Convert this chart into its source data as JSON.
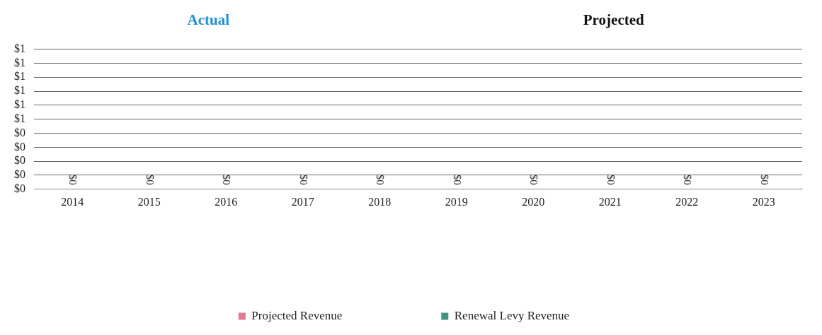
{
  "chart_data": {
    "type": "bar",
    "stacked": true,
    "annotations": [
      "Actual",
      "Projected"
    ],
    "categories": [
      "2014",
      "2015",
      "2016",
      "2017",
      "2018",
      "2019",
      "2020",
      "2021",
      "2022",
      "2023"
    ],
    "series": [
      {
        "name": "Projected Revenue",
        "color": "#e07a8f",
        "values": [
          0,
          0,
          0,
          0,
          0,
          0,
          0,
          0,
          0,
          0
        ]
      },
      {
        "name": "Renewal Levy Revenue",
        "color": "#3f9580",
        "values": [
          0,
          0,
          0,
          0,
          0,
          0,
          0,
          0,
          0,
          0
        ]
      }
    ],
    "totals": [
      "$0",
      "$0",
      "$0",
      "$0",
      "$0",
      "$0",
      "$0",
      "$0",
      "$0",
      "$0"
    ],
    "ylim": [
      0,
      1
    ],
    "yticks": [
      {
        "value": 0,
        "label": "$0"
      },
      {
        "value": 0.1,
        "label": "$0"
      },
      {
        "value": 0.2,
        "label": "$0"
      },
      {
        "value": 0.3,
        "label": "$0"
      },
      {
        "value": 0.4,
        "label": "$0"
      },
      {
        "value": 0.5,
        "label": "$1"
      },
      {
        "value": 0.6,
        "label": "$1"
      },
      {
        "value": 0.7,
        "label": "$1"
      },
      {
        "value": 0.8,
        "label": "$1"
      },
      {
        "value": 0.9,
        "label": "$1"
      },
      {
        "value": 1,
        "label": "$1"
      }
    ],
    "grid": "y",
    "legend": "bottom"
  }
}
